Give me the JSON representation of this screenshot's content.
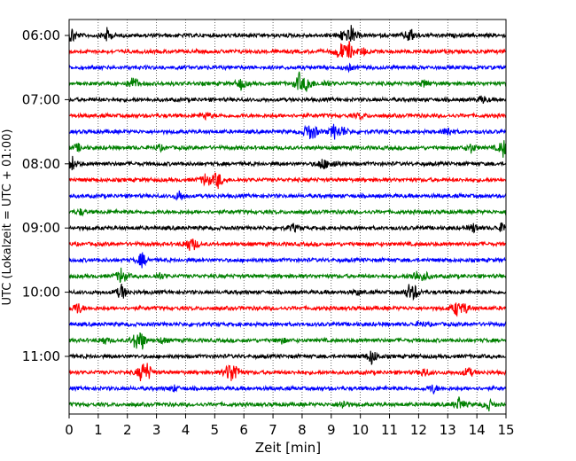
{
  "chart_data": {
    "type": "line",
    "title": "",
    "xlabel": "Zeit  [min]",
    "ylabel": "UTC (Lokalzeit = UTC + 01:00)",
    "xlim": [
      0,
      15
    ],
    "x_ticks": [
      "0",
      "1",
      "2",
      "3",
      "4",
      "5",
      "6",
      "7",
      "8",
      "9",
      "10",
      "11",
      "12",
      "13",
      "14",
      "15"
    ],
    "y_ticks": [
      "06:00",
      "07:00",
      "08:00",
      "09:00",
      "10:00",
      "11:00"
    ],
    "grid": "vertical dotted lines at each minute",
    "trace_start_times": [
      "06:00",
      "06:15",
      "06:30",
      "06:45",
      "07:00",
      "07:15",
      "07:30",
      "07:45",
      "08:00",
      "08:15",
      "08:30",
      "08:45",
      "09:00",
      "09:15",
      "09:30",
      "09:45",
      "10:00",
      "10:15",
      "10:30",
      "10:45",
      "11:00",
      "11:15",
      "11:30",
      "11:45"
    ],
    "trace_colors": [
      "#000000",
      "#ff0000",
      "#0000ff",
      "#008000"
    ],
    "events": [
      [
        [
          0.1,
          0.9
        ],
        [
          1.3,
          0.7
        ],
        [
          9.7,
          1.0
        ],
        [
          11.7,
          0.9
        ],
        [
          9.4,
          0.6
        ]
      ],
      [
        [
          9.3,
          1.0
        ],
        [
          9.6,
          1.0
        ],
        [
          10.1,
          0.4
        ]
      ],
      [
        [
          9.6,
          0.3
        ]
      ],
      [
        [
          2.2,
          0.8
        ],
        [
          5.9,
          0.6
        ],
        [
          7.9,
          1.0
        ],
        [
          8.2,
          0.9
        ],
        [
          8.8,
          0.3
        ],
        [
          12.2,
          0.4
        ]
      ],
      [
        [
          14.2,
          0.4
        ]
      ],
      [
        [
          4.7,
          0.4
        ],
        [
          10.0,
          0.3
        ]
      ],
      [
        [
          8.2,
          0.8
        ],
        [
          8.4,
          0.6
        ],
        [
          9.1,
          0.8
        ],
        [
          9.4,
          0.5
        ],
        [
          13.0,
          0.6
        ]
      ],
      [
        [
          0.3,
          0.4
        ],
        [
          3.1,
          0.3
        ],
        [
          13.8,
          0.5
        ],
        [
          14.9,
          1.0
        ]
      ],
      [
        [
          0.1,
          0.8
        ],
        [
          8.7,
          0.7
        ],
        [
          9.1,
          0.4
        ]
      ],
      [
        [
          4.7,
          0.8
        ],
        [
          5.1,
          1.0
        ]
      ],
      [
        [
          3.8,
          0.6
        ]
      ],
      [
        [
          0.4,
          0.3
        ]
      ],
      [
        [
          7.7,
          0.4
        ],
        [
          13.9,
          0.5
        ],
        [
          14.9,
          0.6
        ]
      ],
      [
        [
          4.1,
          0.6
        ],
        [
          4.3,
          0.4
        ]
      ],
      [
        [
          2.5,
          0.8
        ]
      ],
      [
        [
          1.8,
          1.0
        ],
        [
          3.1,
          0.4
        ],
        [
          11.9,
          0.6
        ],
        [
          12.2,
          0.5
        ]
      ],
      [
        [
          1.8,
          0.9
        ],
        [
          9.9,
          0.3
        ],
        [
          11.7,
          0.9
        ],
        [
          11.9,
          0.5
        ]
      ],
      [
        [
          0.3,
          0.7
        ],
        [
          13.3,
          0.8
        ],
        [
          13.6,
          0.5
        ]
      ],
      [
        [
          12.1,
          0.3
        ]
      ],
      [
        [
          1.2,
          0.4
        ],
        [
          2.3,
          0.9
        ],
        [
          2.5,
          0.8
        ],
        [
          3.2,
          0.3
        ],
        [
          7.3,
          0.3
        ]
      ],
      [
        [
          10.4,
          0.9
        ]
      ],
      [
        [
          2.5,
          1.0
        ],
        [
          2.7,
          0.8
        ],
        [
          5.5,
          1.0
        ],
        [
          5.7,
          0.9
        ],
        [
          12.2,
          0.5
        ],
        [
          13.7,
          0.6
        ]
      ],
      [
        [
          3.6,
          0.3
        ],
        [
          12.5,
          0.5
        ]
      ],
      [
        [
          9.4,
          0.5
        ],
        [
          13.4,
          0.8
        ],
        [
          14.4,
          0.6
        ]
      ]
    ]
  }
}
